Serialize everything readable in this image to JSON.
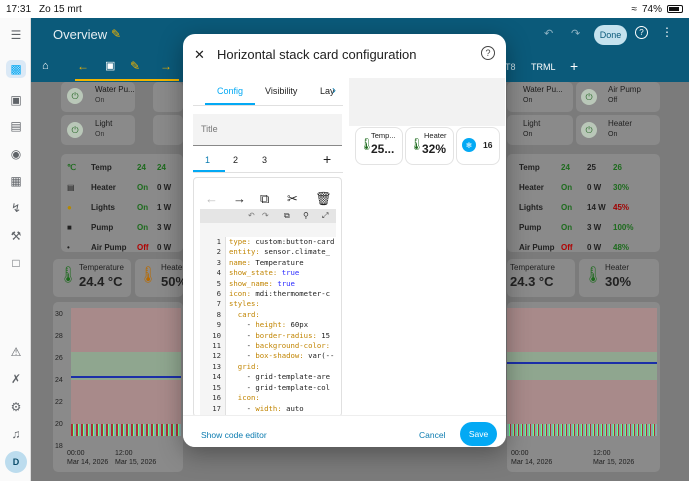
{
  "status_bar": {
    "time": "17:31",
    "date": "Zo 15 mrt",
    "battery": "74%"
  },
  "header": {
    "title": "Overview",
    "done_label": "Done"
  },
  "tabs_bg": {
    "trml": "TRML",
    "t8": "T8"
  },
  "dashboard": {
    "left_buttons": [
      {
        "name": "Water Pu...",
        "state": "On"
      },
      {
        "name": "Light",
        "state": "On"
      }
    ],
    "right_buttons": [
      {
        "name": "Water Pu...",
        "state": "On"
      },
      {
        "name": "Air Pump",
        "state": "Off"
      },
      {
        "name": "Light",
        "state": "On"
      },
      {
        "name": "Heater",
        "state": "On"
      }
    ],
    "left_table": [
      {
        "label": "Temp",
        "a": "24",
        "b": "24"
      },
      {
        "label": "Heater",
        "a": "On",
        "b": "0 W"
      },
      {
        "label": "Lights",
        "a": "On",
        "b": "1 W"
      },
      {
        "label": "Pump",
        "a": "On",
        "b": "3 W"
      },
      {
        "label": "Air Pump",
        "a": "Off",
        "b": "0 W"
      }
    ],
    "right_table": [
      {
        "label": "Temp",
        "a": "24",
        "b": "25",
        "c": "26"
      },
      {
        "label": "Heater",
        "a": "On",
        "b": "0 W",
        "c": "30%"
      },
      {
        "label": "Lights",
        "a": "On",
        "b": "14 W",
        "c": "45%"
      },
      {
        "label": "Pump",
        "a": "On",
        "b": "3 W",
        "c": "100%"
      },
      {
        "label": "Air Pump",
        "a": "Off",
        "b": "0 W",
        "c": "48%"
      }
    ],
    "left_temp": {
      "name": "Temperature",
      "value": "24.4 °C"
    },
    "left_heater": {
      "name": "Heater",
      "value": "50%"
    },
    "right_temp": {
      "name": "Temperature",
      "value": "24.3 °C"
    },
    "right_heater": {
      "name": "Heater",
      "value": "30%"
    },
    "chart_y_ticks": [
      "30",
      "28",
      "26",
      "24",
      "22",
      "20",
      "18"
    ],
    "chart_x_labels": [
      "00:00",
      "12:00",
      "00:00",
      "12:00"
    ],
    "chart_dates": [
      "Mar 14, 2026",
      "Mar 15, 2026"
    ]
  },
  "dialog": {
    "title": "Horizontal stack card configuration",
    "tabs": [
      "Config",
      "Visibility",
      "Lay"
    ],
    "title_placeholder": "Title",
    "card_tabs": [
      "1",
      "2",
      "3"
    ],
    "add_label": "+",
    "preview": {
      "temp_label": "Temp...",
      "temp_value": "25...",
      "heater_label": "Heater",
      "heater_value": "32%",
      "count_value": "16"
    },
    "line_numbers": [
      "1",
      "2",
      "3",
      "4",
      "5",
      "6",
      "7",
      "8",
      "9",
      "10",
      "11",
      "12",
      "13",
      "14",
      "15",
      "16",
      "17"
    ],
    "code_lines": [
      "type: custom:button-card",
      "entity: sensor.climate_",
      "name: Temperature",
      "show_state: true",
      "show_name: true",
      "icon: mdi:thermometer-c",
      "styles:",
      "  card:",
      "    - height: 60px",
      "    - border-radius: 15",
      "    - background-color:",
      "    - box-shadow: var(--",
      "  grid:",
      "    - grid-template-are",
      "    - grid-template-col",
      "  icon:",
      "    - width: auto"
    ],
    "footer": {
      "code_editor_label": "Show code editor",
      "cancel_label": "Cancel",
      "save_label": "Save"
    }
  },
  "colors": {
    "accent": "#03a9f4",
    "header": "#0b5a7a"
  }
}
